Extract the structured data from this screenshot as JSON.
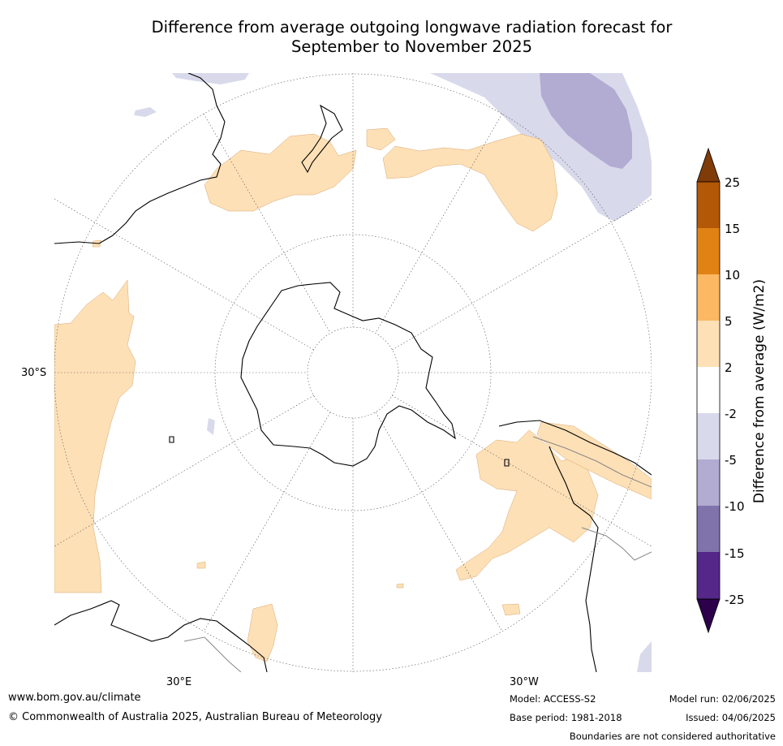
{
  "title": {
    "line1": "Difference from average outgoing longwave radiation forecast for",
    "line2": "September to November 2025"
  },
  "map": {
    "projection": "south-polar stereographic",
    "lat_label": "30°S",
    "lon_labels": {
      "east": "30°E",
      "west": "30°W"
    }
  },
  "colorbar": {
    "label": "Difference from average (W/m2)",
    "ticks": [
      "25",
      "15",
      "10",
      "5",
      "2",
      "-2",
      "-5",
      "-10",
      "-15",
      "-25"
    ],
    "colors": {
      "above_25": "#7f3b08",
      "15_to_25": "#b35806",
      "10_to_15": "#e08214",
      "5_to_10": "#fdb863",
      "2_to_5": "#fee0b6",
      "neutral": "#ffffff",
      "m2_to_m5": "#d8daeb",
      "m5_to_m10": "#b2abd2",
      "m10_to_m15": "#8073ac",
      "m15_to_m25": "#542788",
      "below_m25": "#2d004b"
    }
  },
  "footer": {
    "website": "www.bom.gov.au/climate",
    "copyright": "© Commonwealth of Australia 2025, Australian Bureau of Meteorology",
    "model": "Model: ACCESS-S2",
    "base_period": "Base period: 1981-2018",
    "model_run": "Model run: 02/06/2025",
    "issued": "Issued: 04/06/2025",
    "disclaimer": "Boundaries are not considered authoritative"
  }
}
